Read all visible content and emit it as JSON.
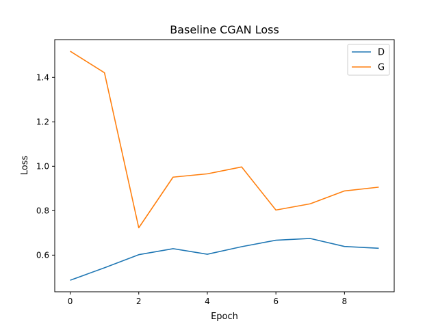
{
  "chart_data": {
    "type": "line",
    "title": "Baseline CGAN Loss",
    "xlabel": "Epoch",
    "ylabel": "Loss",
    "x": [
      0,
      1,
      2,
      3,
      4,
      5,
      6,
      7,
      8,
      9
    ],
    "series": [
      {
        "name": "D",
        "color": "#1f77b4",
        "values": [
          0.487,
          0.543,
          0.602,
          0.629,
          0.604,
          0.638,
          0.667,
          0.675,
          0.639,
          0.631
        ]
      },
      {
        "name": "G",
        "color": "#ff7f0e",
        "values": [
          1.518,
          1.421,
          0.723,
          0.951,
          0.966,
          0.997,
          0.803,
          0.831,
          0.889,
          0.906
        ]
      }
    ],
    "xlim": [
      -0.45,
      9.45
    ],
    "ylim": [
      0.435,
      1.57
    ],
    "xticks": [
      0,
      2,
      4,
      6,
      8
    ],
    "yticks": [
      0.6,
      0.8,
      1.0,
      1.2,
      1.4
    ],
    "grid": false,
    "legend_position": "top-right"
  }
}
